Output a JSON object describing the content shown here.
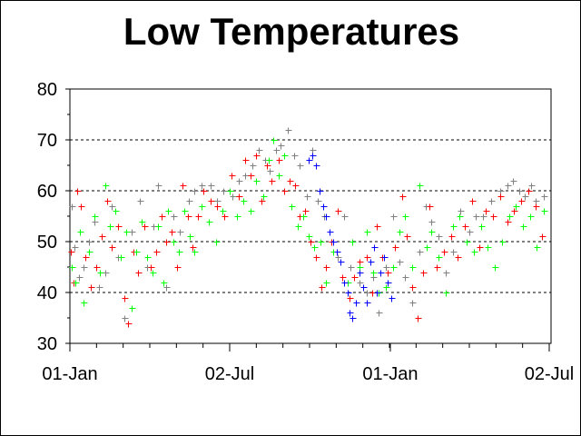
{
  "chart_data": {
    "type": "scatter",
    "title": "Low Temperatures",
    "xlabel": "",
    "ylabel": "",
    "ylim": [
      30,
      80
    ],
    "yticks": [
      30,
      40,
      50,
      60,
      70,
      80
    ],
    "xlim_days": [
      0,
      546
    ],
    "xticks": [
      {
        "day": 0,
        "label": "01-Jan"
      },
      {
        "day": 182,
        "label": "02-Jul"
      },
      {
        "day": 365,
        "label": "01-Jan"
      },
      {
        "day": 547,
        "label": "02-Jul"
      }
    ],
    "grid": "horizontal dashed",
    "x_unit": "days since 01-Jan",
    "series": [
      {
        "name": "gray",
        "color": "#808080",
        "points": [
          [
            2,
            57
          ],
          [
            5,
            49
          ],
          [
            10,
            43
          ],
          [
            15,
            45
          ],
          [
            22,
            50
          ],
          [
            28,
            54
          ],
          [
            33,
            41
          ],
          [
            40,
            44
          ],
          [
            48,
            57
          ],
          [
            55,
            47
          ],
          [
            62,
            35
          ],
          [
            70,
            52
          ],
          [
            80,
            58
          ],
          [
            88,
            45
          ],
          [
            95,
            53
          ],
          [
            100,
            61
          ],
          [
            110,
            41
          ],
          [
            118,
            55
          ],
          [
            125,
            52
          ],
          [
            135,
            58
          ],
          [
            142,
            60
          ],
          [
            150,
            61
          ],
          [
            160,
            61
          ],
          [
            168,
            58
          ],
          [
            175,
            60
          ],
          [
            185,
            59
          ],
          [
            192,
            62
          ],
          [
            200,
            63
          ],
          [
            208,
            65
          ],
          [
            215,
            68
          ],
          [
            222,
            66
          ],
          [
            228,
            64
          ],
          [
            235,
            68
          ],
          [
            240,
            69
          ],
          [
            248,
            72
          ],
          [
            255,
            67
          ],
          [
            262,
            65
          ],
          [
            270,
            59
          ],
          [
            276,
            68
          ],
          [
            282,
            58
          ],
          [
            290,
            55
          ],
          [
            298,
            50
          ],
          [
            305,
            47
          ],
          [
            312,
            55
          ],
          [
            320,
            45
          ],
          [
            330,
            42
          ],
          [
            338,
            40
          ],
          [
            345,
            43
          ],
          [
            352,
            36
          ],
          [
            360,
            45
          ],
          [
            368,
            55
          ],
          [
            375,
            46
          ],
          [
            382,
            43
          ],
          [
            390,
            38
          ],
          [
            398,
            48
          ],
          [
            405,
            57
          ],
          [
            412,
            54
          ],
          [
            420,
            51
          ],
          [
            428,
            44
          ],
          [
            436,
            48
          ],
          [
            445,
            56
          ],
          [
            455,
            52
          ],
          [
            462,
            55
          ],
          [
            470,
            55
          ],
          [
            480,
            58
          ],
          [
            490,
            60
          ],
          [
            498,
            61
          ],
          [
            505,
            62
          ],
          [
            512,
            60
          ],
          [
            518,
            59
          ],
          [
            525,
            61
          ],
          [
            530,
            58
          ],
          [
            540,
            59
          ]
        ]
      },
      {
        "name": "red",
        "color": "#ff0000",
        "points": [
          [
            1,
            48
          ],
          [
            4,
            42
          ],
          [
            8,
            60
          ],
          [
            12,
            57
          ],
          [
            18,
            47
          ],
          [
            24,
            41
          ],
          [
            30,
            45
          ],
          [
            36,
            51
          ],
          [
            42,
            58
          ],
          [
            48,
            49
          ],
          [
            55,
            53
          ],
          [
            62,
            39
          ],
          [
            66,
            34
          ],
          [
            72,
            48
          ],
          [
            78,
            44
          ],
          [
            85,
            53
          ],
          [
            92,
            45
          ],
          [
            98,
            48
          ],
          [
            104,
            55
          ],
          [
            110,
            50
          ],
          [
            116,
            52
          ],
          [
            122,
            45
          ],
          [
            128,
            61
          ],
          [
            134,
            55
          ],
          [
            140,
            49
          ],
          [
            146,
            55
          ],
          [
            152,
            60
          ],
          [
            160,
            58
          ],
          [
            168,
            57
          ],
          [
            176,
            55
          ],
          [
            184,
            63
          ],
          [
            192,
            59
          ],
          [
            200,
            66
          ],
          [
            206,
            63
          ],
          [
            212,
            67
          ],
          [
            218,
            58
          ],
          [
            224,
            65
          ],
          [
            230,
            62
          ],
          [
            238,
            66
          ],
          [
            244,
            60
          ],
          [
            250,
            62
          ],
          [
            256,
            61
          ],
          [
            262,
            55
          ],
          [
            268,
            56
          ],
          [
            274,
            50
          ],
          [
            280,
            47
          ],
          [
            286,
            41
          ],
          [
            292,
            45
          ],
          [
            298,
            50
          ],
          [
            305,
            56
          ],
          [
            310,
            43
          ],
          [
            318,
            39
          ],
          [
            324,
            43
          ],
          [
            330,
            46
          ],
          [
            338,
            47
          ],
          [
            344,
            40
          ],
          [
            350,
            53
          ],
          [
            356,
            47
          ],
          [
            362,
            44
          ],
          [
            370,
            49
          ],
          [
            378,
            59
          ],
          [
            384,
            51
          ],
          [
            390,
            41
          ],
          [
            396,
            35
          ],
          [
            402,
            44
          ],
          [
            410,
            57
          ],
          [
            418,
            45
          ],
          [
            426,
            48
          ],
          [
            434,
            51
          ],
          [
            442,
            47
          ],
          [
            450,
            53
          ],
          [
            458,
            58
          ],
          [
            466,
            49
          ],
          [
            474,
            56
          ],
          [
            482,
            55
          ],
          [
            490,
            59
          ],
          [
            498,
            54
          ],
          [
            506,
            56
          ],
          [
            514,
            58
          ],
          [
            522,
            60
          ],
          [
            530,
            57
          ],
          [
            538,
            51
          ]
        ]
      },
      {
        "name": "green",
        "color": "#00ff00",
        "points": [
          [
            2,
            45
          ],
          [
            6,
            42
          ],
          [
            11,
            52
          ],
          [
            16,
            38
          ],
          [
            22,
            48
          ],
          [
            28,
            55
          ],
          [
            34,
            44
          ],
          [
            40,
            61
          ],
          [
            46,
            53
          ],
          [
            52,
            56
          ],
          [
            58,
            47
          ],
          [
            64,
            52
          ],
          [
            70,
            37
          ],
          [
            76,
            48
          ],
          [
            82,
            54
          ],
          [
            88,
            47
          ],
          [
            94,
            44
          ],
          [
            100,
            53
          ],
          [
            106,
            42
          ],
          [
            112,
            56
          ],
          [
            118,
            50
          ],
          [
            124,
            48
          ],
          [
            130,
            56
          ],
          [
            136,
            51
          ],
          [
            142,
            48
          ],
          [
            150,
            57
          ],
          [
            158,
            54
          ],
          [
            166,
            50
          ],
          [
            174,
            56
          ],
          [
            182,
            60
          ],
          [
            190,
            55
          ],
          [
            198,
            58
          ],
          [
            206,
            56
          ],
          [
            212,
            62
          ],
          [
            220,
            59
          ],
          [
            226,
            66
          ],
          [
            232,
            70
          ],
          [
            238,
            63
          ],
          [
            244,
            67
          ],
          [
            252,
            57
          ],
          [
            260,
            53
          ],
          [
            266,
            55
          ],
          [
            272,
            51
          ],
          [
            278,
            49
          ],
          [
            285,
            50
          ],
          [
            292,
            42
          ],
          [
            300,
            48
          ],
          [
            308,
            46
          ],
          [
            316,
            42
          ],
          [
            322,
            50
          ],
          [
            330,
            45
          ],
          [
            338,
            52
          ],
          [
            345,
            44
          ],
          [
            352,
            40
          ],
          [
            360,
            41
          ],
          [
            368,
            45
          ],
          [
            375,
            52
          ],
          [
            382,
            55
          ],
          [
            390,
            45
          ],
          [
            398,
            61
          ],
          [
            406,
            49
          ],
          [
            412,
            52
          ],
          [
            420,
            47
          ],
          [
            428,
            40
          ],
          [
            436,
            53
          ],
          [
            444,
            55
          ],
          [
            452,
            50
          ],
          [
            460,
            48
          ],
          [
            468,
            53
          ],
          [
            476,
            49
          ],
          [
            484,
            45
          ],
          [
            492,
            50
          ],
          [
            500,
            55
          ],
          [
            508,
            57
          ],
          [
            516,
            53
          ],
          [
            524,
            55
          ],
          [
            532,
            49
          ],
          [
            540,
            56
          ]
        ]
      },
      {
        "name": "blue",
        "color": "#0000ff",
        "points": [
          [
            272,
            66
          ],
          [
            276,
            67
          ],
          [
            280,
            65
          ],
          [
            284,
            60
          ],
          [
            288,
            57
          ],
          [
            292,
            55
          ],
          [
            296,
            52
          ],
          [
            300,
            50
          ],
          [
            304,
            48
          ],
          [
            308,
            46
          ],
          [
            312,
            42
          ],
          [
            316,
            40
          ],
          [
            318,
            36
          ],
          [
            322,
            35
          ],
          [
            326,
            38
          ],
          [
            330,
            44
          ],
          [
            334,
            41
          ],
          [
            338,
            38
          ],
          [
            342,
            46
          ],
          [
            346,
            49
          ],
          [
            350,
            40
          ],
          [
            354,
            44
          ],
          [
            358,
            47
          ],
          [
            362,
            42
          ],
          [
            366,
            39
          ]
        ]
      }
    ]
  }
}
